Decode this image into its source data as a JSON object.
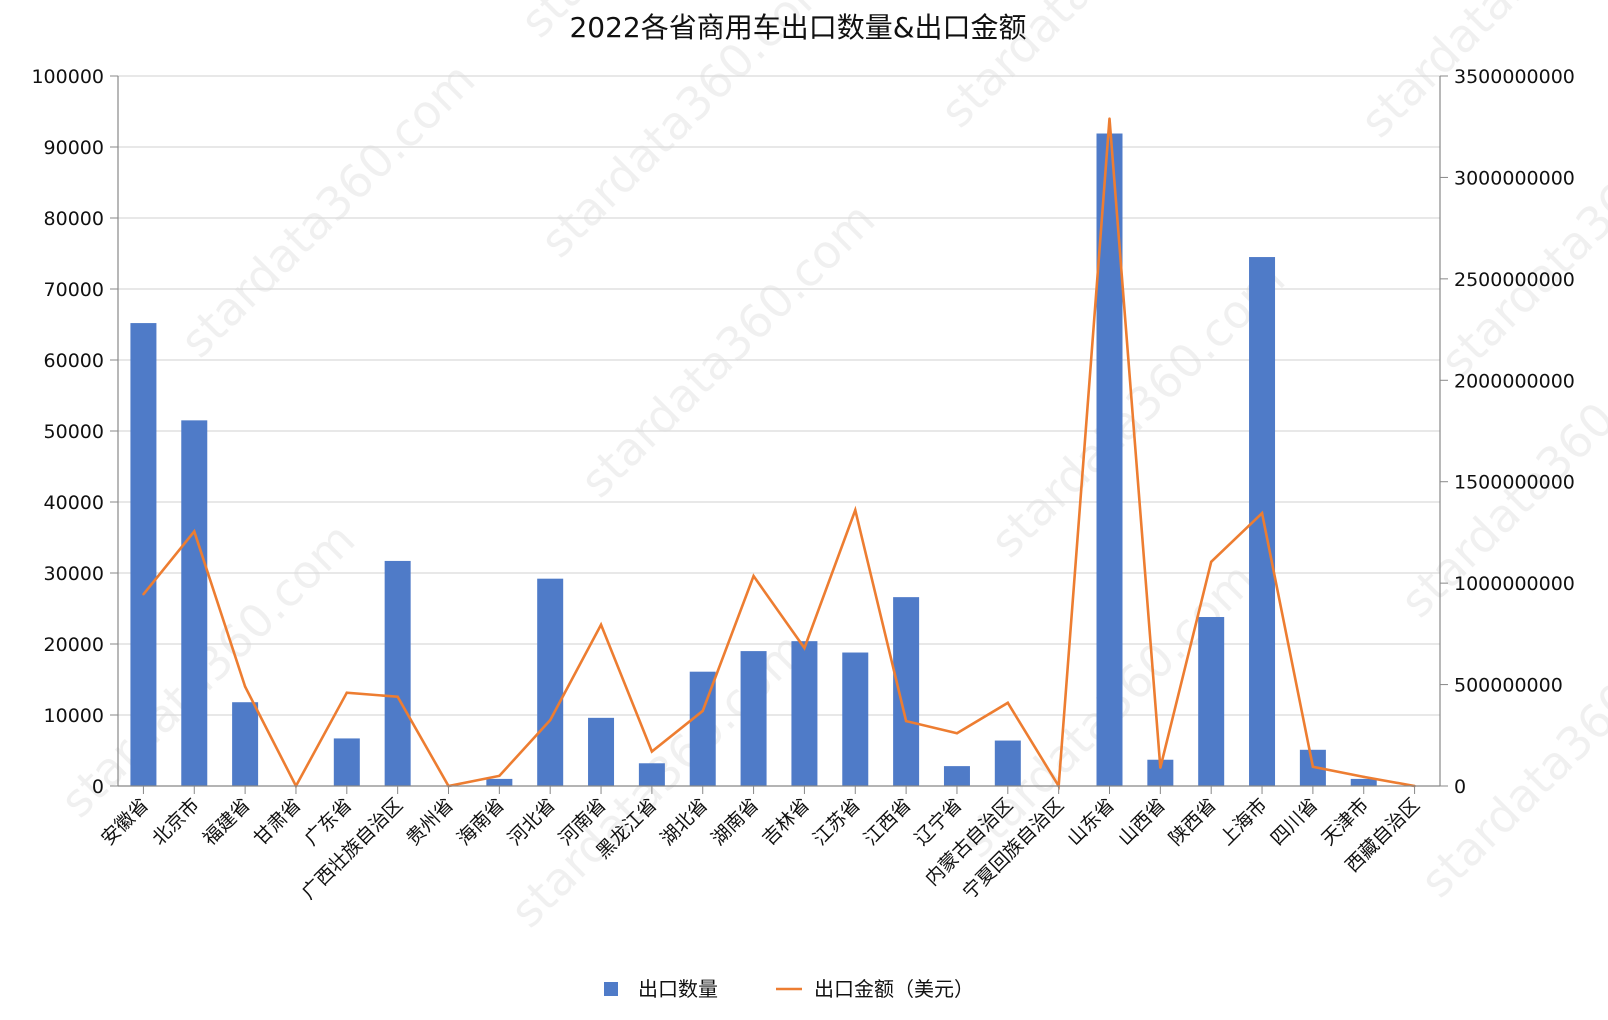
{
  "chart_data": {
    "type": "bar",
    "title": "2022各省商用车出口数量&出口金额",
    "categories": [
      "安徽省",
      "北京市",
      "福建省",
      "甘肃省",
      "广东省",
      "广西壮族自治区",
      "贵州省",
      "海南省",
      "河北省",
      "河南省",
      "黑龙江省",
      "湖北省",
      "湖南省",
      "吉林省",
      "江苏省",
      "江西省",
      "辽宁省",
      "内蒙古自治区",
      "宁夏回族自治区",
      "山东省",
      "山西省",
      "陕西省",
      "上海市",
      "四川省",
      "天津市",
      "西藏自治区"
    ],
    "series": [
      {
        "name": "出口数量",
        "type": "bar",
        "axis": "left",
        "color": "#4f7bc8",
        "values": [
          65200,
          51500,
          11800,
          0,
          6700,
          31700,
          0,
          1000,
          29200,
          9600,
          3200,
          16100,
          19000,
          20400,
          18800,
          26600,
          2800,
          6400,
          0,
          91900,
          3700,
          23800,
          74500,
          5100,
          1000,
          0
        ]
      },
      {
        "name": "出口金额（美元）",
        "type": "line",
        "axis": "right",
        "color": "#ed7d31",
        "values": [
          945000000,
          1255000000,
          490000000,
          0,
          460000000,
          440000000,
          0,
          50000000,
          325000000,
          795000000,
          170000000,
          370000000,
          1035000000,
          680000000,
          1360000000,
          320000000,
          260000000,
          410000000,
          0,
          3290000000,
          90000000,
          1105000000,
          1345000000,
          95000000,
          45000000,
          0
        ]
      }
    ],
    "y_left": {
      "min": 0,
      "max": 100000,
      "ticks": [
        "0",
        "10000",
        "20000",
        "30000",
        "40000",
        "50000",
        "60000",
        "70000",
        "80000",
        "90000",
        "100000"
      ]
    },
    "y_right": {
      "min": 0,
      "max": 3500000000,
      "ticks": [
        "0",
        "500000000",
        "1000000000",
        "1500000000",
        "2000000000",
        "2500000000",
        "3000000000",
        "3500000000"
      ]
    },
    "grid": true,
    "legend_position": "bottom",
    "watermark": "stardata360.com"
  }
}
